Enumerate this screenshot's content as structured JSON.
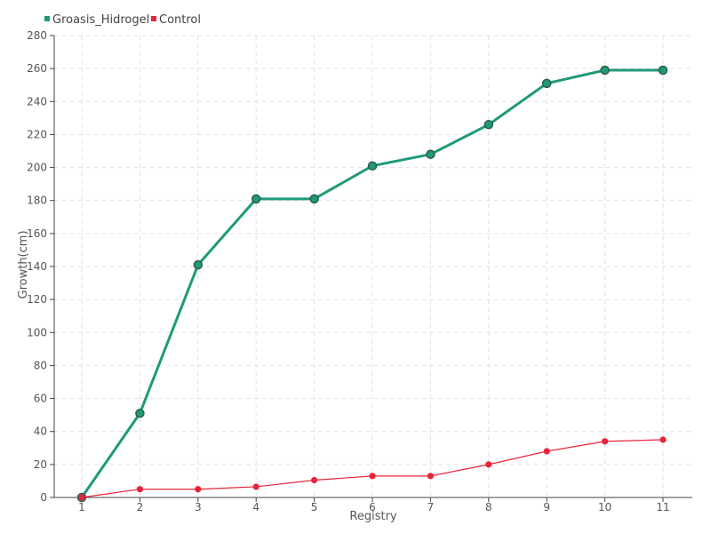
{
  "chart_data": {
    "type": "line",
    "xlabel": "Registry",
    "ylabel": "Growth(cm)",
    "categories": [
      "1",
      "2",
      "3",
      "4",
      "5",
      "6",
      "7",
      "8",
      "9",
      "10",
      "11"
    ],
    "ylim": [
      0,
      280
    ],
    "yticks": [
      0,
      20,
      40,
      60,
      80,
      100,
      120,
      140,
      160,
      180,
      200,
      220,
      240,
      260,
      280
    ],
    "grid": true,
    "legend_position": "top-left",
    "series": [
      {
        "name": "Groasis_Hidrogel",
        "color": "#1f9a78",
        "values": [
          0,
          51,
          141,
          181,
          181,
          201,
          208,
          226,
          251,
          259,
          259
        ]
      },
      {
        "name": "Control",
        "color": "#e8243a",
        "values": [
          0,
          5,
          5,
          6.5,
          10.5,
          13,
          13,
          20,
          28,
          34,
          35
        ]
      }
    ]
  }
}
